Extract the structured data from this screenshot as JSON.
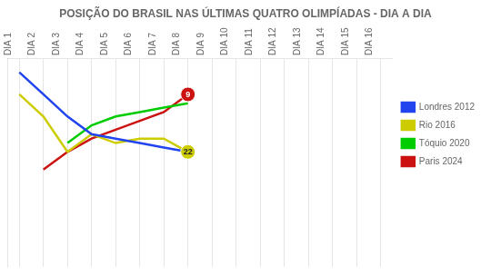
{
  "chart_data": {
    "type": "line",
    "title": "POSIÇÃO DO BRASIL NAS ÚLTIMAS QUATRO OLIMPÍADAS - DIA A DIA",
    "categories": [
      "DIA 1",
      "DIA 2",
      "DIA 3",
      "DIA 4",
      "DIA 5",
      "DIA 6",
      "DIA 7",
      "DIA 8",
      "DIA 9",
      "DIA 10",
      "DIA 11",
      "DIA 12",
      "DIA 13",
      "DIA 14",
      "DIA 15",
      "DIA 16"
    ],
    "series": [
      {
        "name": "Londres 2012",
        "color": "#2244ee",
        "values": [
          4,
          9,
          14,
          18,
          19,
          20,
          21,
          22,
          null,
          null,
          null,
          null,
          null,
          null,
          null,
          null
        ]
      },
      {
        "name": "Rio 2016",
        "color": "#cccc00",
        "values": [
          9,
          14,
          22,
          18,
          20,
          19,
          19,
          22,
          null,
          null,
          null,
          null,
          null,
          null,
          null,
          null
        ]
      },
      {
        "name": "Tóquio 2020",
        "color": "#00cc00",
        "values": [
          null,
          null,
          20,
          16,
          14,
          13,
          12,
          11,
          null,
          null,
          null,
          null,
          null,
          null,
          null,
          null
        ]
      },
      {
        "name": "Paris 2024",
        "color": "#cc1111",
        "values": [
          null,
          26,
          22,
          19,
          17,
          15,
          13,
          9,
          null,
          null,
          null,
          null,
          null,
          null,
          null,
          null
        ]
      }
    ],
    "ylim": [
      48,
      1
    ],
    "grid": "x",
    "tick_labels": "x",
    "legend": "right",
    "annotations": [
      {
        "series": "Paris 2024",
        "category": "DIA 8",
        "value": 9,
        "label": "9"
      },
      {
        "series": "Rio 2016",
        "category": "DIA 8",
        "value": 22,
        "label": "22"
      }
    ]
  }
}
